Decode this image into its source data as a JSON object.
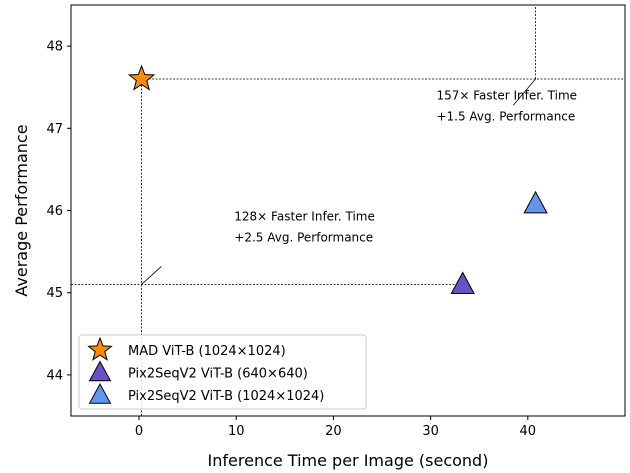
{
  "chart_data": {
    "type": "scatter",
    "xlabel": "Inference Time per Image (second)",
    "ylabel": "Average Performance",
    "xlim": [
      -7,
      50
    ],
    "ylim": [
      43.5,
      48.5
    ],
    "xticks": [
      0,
      10,
      20,
      30,
      40
    ],
    "yticks": [
      44,
      45,
      46,
      47,
      48
    ],
    "grid": false,
    "legend_position": "lower-left",
    "series": [
      {
        "name": "MAD ViT-B (1024×1024)",
        "marker": "star",
        "color": "#ff8c00",
        "x": [
          0.26
        ],
        "y": [
          47.6
        ]
      },
      {
        "name": "Pix2SeqV2 ViT-B (640×640)",
        "marker": "triangle",
        "color": "#6a4fc8",
        "x": [
          33.3
        ],
        "y": [
          45.1
        ]
      },
      {
        "name": "Pix2SeqV2 ViT-B (1024×1024)",
        "marker": "triangle",
        "color": "#6495ed",
        "x": [
          40.8
        ],
        "y": [
          46.08
        ]
      }
    ],
    "reference_lines": [
      {
        "orientation": "vertical",
        "x": 0.26,
        "y_from": 43.5,
        "y_to": 47.6
      },
      {
        "orientation": "horizontal",
        "y": 47.6,
        "x_from": 0.26,
        "x_to": 50
      },
      {
        "orientation": "vertical",
        "x": 40.8,
        "y_from": 47.6,
        "y_to": 48.5
      },
      {
        "orientation": "horizontal",
        "y": 45.1,
        "x_from": -7,
        "x_to": 33.3
      }
    ],
    "annotations": [
      {
        "lines": [
          "157× Faster Infer. Time",
          "+1.5 Avg. Performance"
        ],
        "text_x": 30.6,
        "text_y": 47.35,
        "arrow_from_x": 38.5,
        "arrow_from_y": 47.28,
        "arrow_to_x": 40.8,
        "arrow_to_y": 47.6
      },
      {
        "lines": [
          "128× Faster Infer. Time",
          "+2.5 Avg. Performance"
        ],
        "text_x": 9.8,
        "text_y": 45.88,
        "arrow_from_x": 2.3,
        "arrow_from_y": 45.32,
        "arrow_to_x": 0.26,
        "arrow_to_y": 45.1
      }
    ]
  }
}
